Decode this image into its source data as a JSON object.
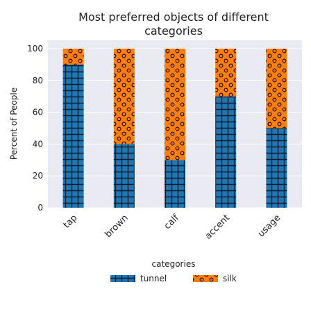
{
  "chart_data": {
    "type": "bar",
    "stacked": true,
    "title": "Most preferred objects of different categories",
    "title_lines": [
      "Most preferred objects of different",
      "categories"
    ],
    "xlabel": "",
    "ylabel": "Percent of People",
    "ylim": [
      0,
      100
    ],
    "yticks": [
      0,
      20,
      40,
      60,
      80,
      100
    ],
    "categories": [
      "tap",
      "brown",
      "calf",
      "accent",
      "usage"
    ],
    "series": [
      {
        "name": "tunnel",
        "values": [
          90,
          40,
          30,
          70,
          50
        ],
        "color": "#1f77b4",
        "pattern": "grid"
      },
      {
        "name": "silk",
        "values": [
          10,
          60,
          70,
          30,
          50
        ],
        "color": "#ff7f0e",
        "pattern": "dots"
      }
    ],
    "legend_title": "categories",
    "legend_position": "bottom",
    "grid": true,
    "background": "#eaeaf2"
  }
}
